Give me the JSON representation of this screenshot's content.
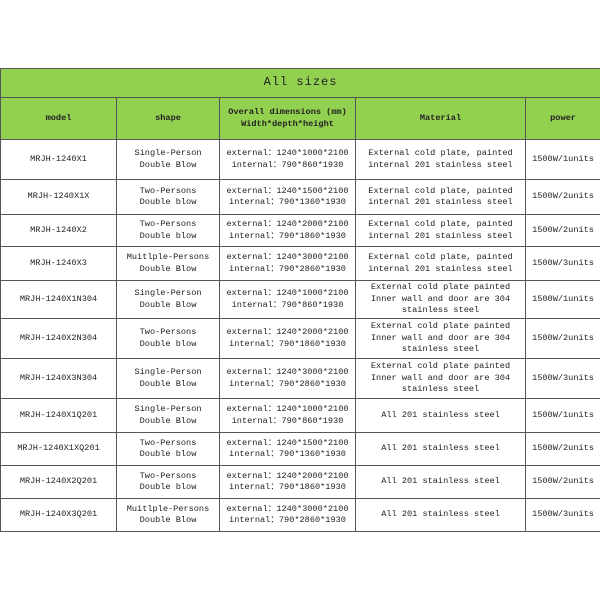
{
  "table": {
    "title": "All sizes",
    "header_color": "#92d050",
    "columns": [
      "model",
      "shape",
      "Overall dimensions (mm)\nWidth*depth*height",
      "Material",
      "power"
    ],
    "rows": [
      {
        "model": "MRJH-1240X1",
        "shape": [
          "Single-Person",
          "Double Blow"
        ],
        "dims": [
          "external：1240*1000*2100",
          "internal：790*860*1930"
        ],
        "material": [
          "External cold plate, painted",
          "internal 201 stainless steel"
        ],
        "power": "1500W/1units"
      },
      {
        "model": "MRJH-1240X1X",
        "shape": [
          "Two-Persons",
          "Double blow"
        ],
        "dims": [
          "external：1240*1500*2100",
          "internal：790*1360*1930"
        ],
        "material": [
          "External cold plate, painted",
          "internal 201 stainless steel"
        ],
        "power": "1500W/2units"
      },
      {
        "model": "MRJH-1240X2",
        "shape": [
          "Two-Persons",
          "Double blow"
        ],
        "dims": [
          "external：1240*2000*2100",
          "internal：790*1860*1930"
        ],
        "material": [
          "External cold plate, painted",
          "internal 201 stainless steel"
        ],
        "power": "1500W/2units"
      },
      {
        "model": "MRJH-1240X3",
        "shape": [
          "Muitlple-Persons",
          "Double Blow"
        ],
        "dims": [
          "external：1240*3000*2100",
          "internal：790*2860*1930"
        ],
        "material": [
          "External cold plate, painted",
          "internal 201 stainless steel"
        ],
        "power": "1500W/3units"
      },
      {
        "model": "MRJH-1240X1N304",
        "shape": [
          "Single-Person",
          "Double Blow"
        ],
        "dims": [
          "external：1240*1000*2100",
          "internal：790*860*1930"
        ],
        "material": [
          "External cold plate painted",
          "Inner wall and door are 304",
          "stainless steel"
        ],
        "power": "1500W/1units"
      },
      {
        "model": "MRJH-1240X2N304",
        "shape": [
          "Two-Persons",
          "Double blow"
        ],
        "dims": [
          "external：1240*2000*2100",
          "internal：790*1860*1930"
        ],
        "material": [
          "External cold plate painted",
          "Inner wall and door are 304",
          "stainless steel"
        ],
        "power": "1500W/2units"
      },
      {
        "model": "MRJH-1240X3N304",
        "shape": [
          "Single-Person",
          "Double Blow"
        ],
        "dims": [
          "external：1240*3000*2100",
          "internal：790*2860*1930"
        ],
        "material": [
          "External cold plate painted",
          "Inner wall and door are 304",
          "stainless steel"
        ],
        "power": "1500W/3units"
      },
      {
        "model": "MRJH-1240X1Q201",
        "shape": [
          "Single-Person",
          "Double Blow"
        ],
        "dims": [
          "external：1240*1000*2100",
          "internal：790*860*1930"
        ],
        "material": [
          "All 201 stainless steel"
        ],
        "power": "1500W/1units"
      },
      {
        "model": "MRJH-1240X1XQ201",
        "shape": [
          "Two-Persons",
          "Double blow"
        ],
        "dims": [
          "external：1240*1500*2100",
          "internal：790*1360*1930"
        ],
        "material": [
          "All 201 stainless steel"
        ],
        "power": "1500W/2units"
      },
      {
        "model": "MRJH-1240X2Q201",
        "shape": [
          "Two-Persons",
          "Double blow"
        ],
        "dims": [
          "external：1240*2000*2100",
          "internal：790*1860*1930"
        ],
        "material": [
          "All 201 stainless steel"
        ],
        "power": "1500W/2units"
      },
      {
        "model": "MRJH-1240X3Q201",
        "shape": [
          "Muitlple-Persons",
          "Double Blow"
        ],
        "dims": [
          "external：1240*3000*2100",
          "internal：790*2860*1930"
        ],
        "material": [
          "All 201 stainless steel"
        ],
        "power": "1500W/3units"
      }
    ]
  }
}
